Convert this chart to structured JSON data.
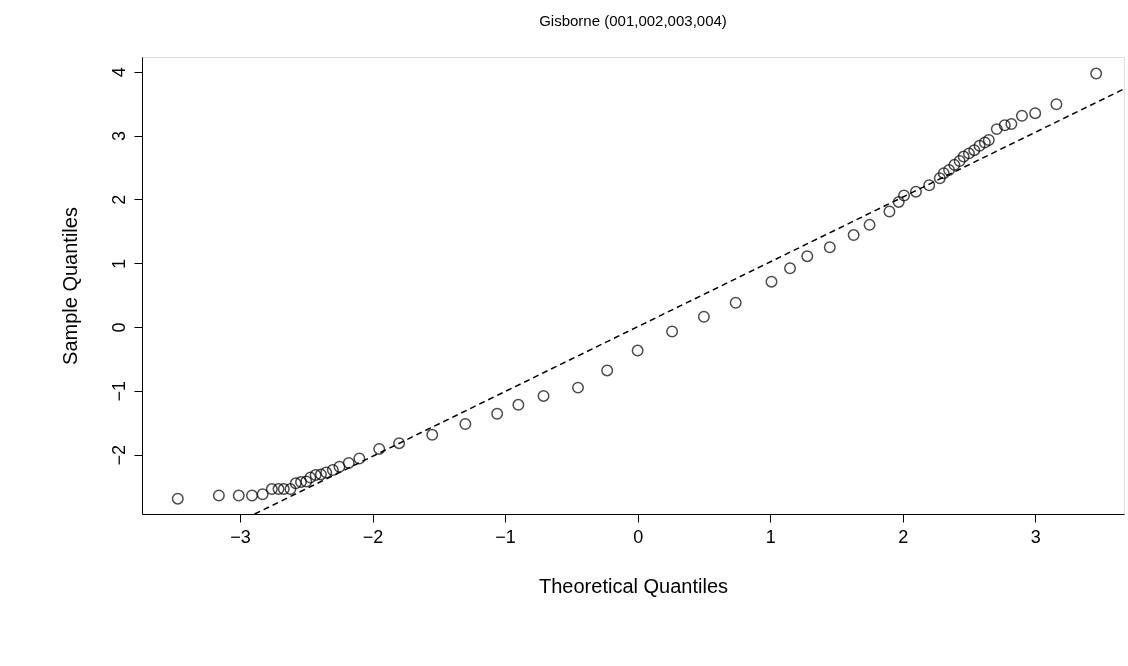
{
  "chart_data": {
    "type": "scatter",
    "title": "Gisborne (001,002,003,004)",
    "xlabel": "Theoretical Quantiles",
    "ylabel": "Sample Quantiles",
    "xlim": [
      -3.74,
      3.67
    ],
    "ylim": [
      -2.93,
      4.23
    ],
    "xticks": [
      -3,
      -2,
      -1,
      0,
      1,
      2,
      3
    ],
    "yticks": [
      -2,
      -1,
      0,
      1,
      2,
      3,
      4
    ],
    "grid": false,
    "series": [
      {
        "marker": "circle",
        "color": "#000000",
        "x": [
          -3.47,
          -3.16,
          -3.01,
          -2.91,
          -2.83,
          -2.76,
          -2.71,
          -2.67,
          -2.62,
          -2.58,
          -2.54,
          -2.5,
          -2.47,
          -2.43,
          -2.39,
          -2.35,
          -2.3,
          -2.25,
          -2.18,
          -2.1,
          -1.95,
          -1.8,
          -1.55,
          -1.3,
          -1.06,
          -0.9,
          -0.71,
          -0.45,
          -0.23,
          0.0,
          0.26,
          0.5,
          0.74,
          1.01,
          1.15,
          1.28,
          1.45,
          1.63,
          1.75,
          1.9,
          1.97,
          2.01,
          2.1,
          2.2,
          2.28,
          2.31,
          2.35,
          2.39,
          2.43,
          2.46,
          2.5,
          2.54,
          2.58,
          2.62,
          2.65,
          2.71,
          2.77,
          2.82,
          2.9,
          3.0,
          3.16,
          3.46
        ],
        "values": [
          -2.69,
          -2.64,
          -2.64,
          -2.64,
          -2.62,
          -2.54,
          -2.54,
          -2.54,
          -2.54,
          -2.45,
          -2.43,
          -2.42,
          -2.36,
          -2.32,
          -2.31,
          -2.28,
          -2.24,
          -2.19,
          -2.13,
          -2.06,
          -1.91,
          -1.82,
          -1.69,
          -1.52,
          -1.36,
          -1.22,
          -1.08,
          -0.95,
          -0.68,
          -0.37,
          -0.07,
          0.16,
          0.38,
          0.71,
          0.92,
          1.11,
          1.25,
          1.44,
          1.6,
          1.81,
          1.96,
          2.06,
          2.12,
          2.22,
          2.33,
          2.41,
          2.46,
          2.54,
          2.6,
          2.67,
          2.72,
          2.77,
          2.84,
          2.89,
          2.93,
          3.1,
          3.16,
          3.18,
          3.31,
          3.35,
          3.49,
          3.97
        ]
      },
      {
        "type": "line",
        "line_style": "dashed",
        "color": "#000000",
        "x": [
          -2.89,
          3.67
        ],
        "values": [
          -2.93,
          3.73
        ]
      }
    ]
  }
}
